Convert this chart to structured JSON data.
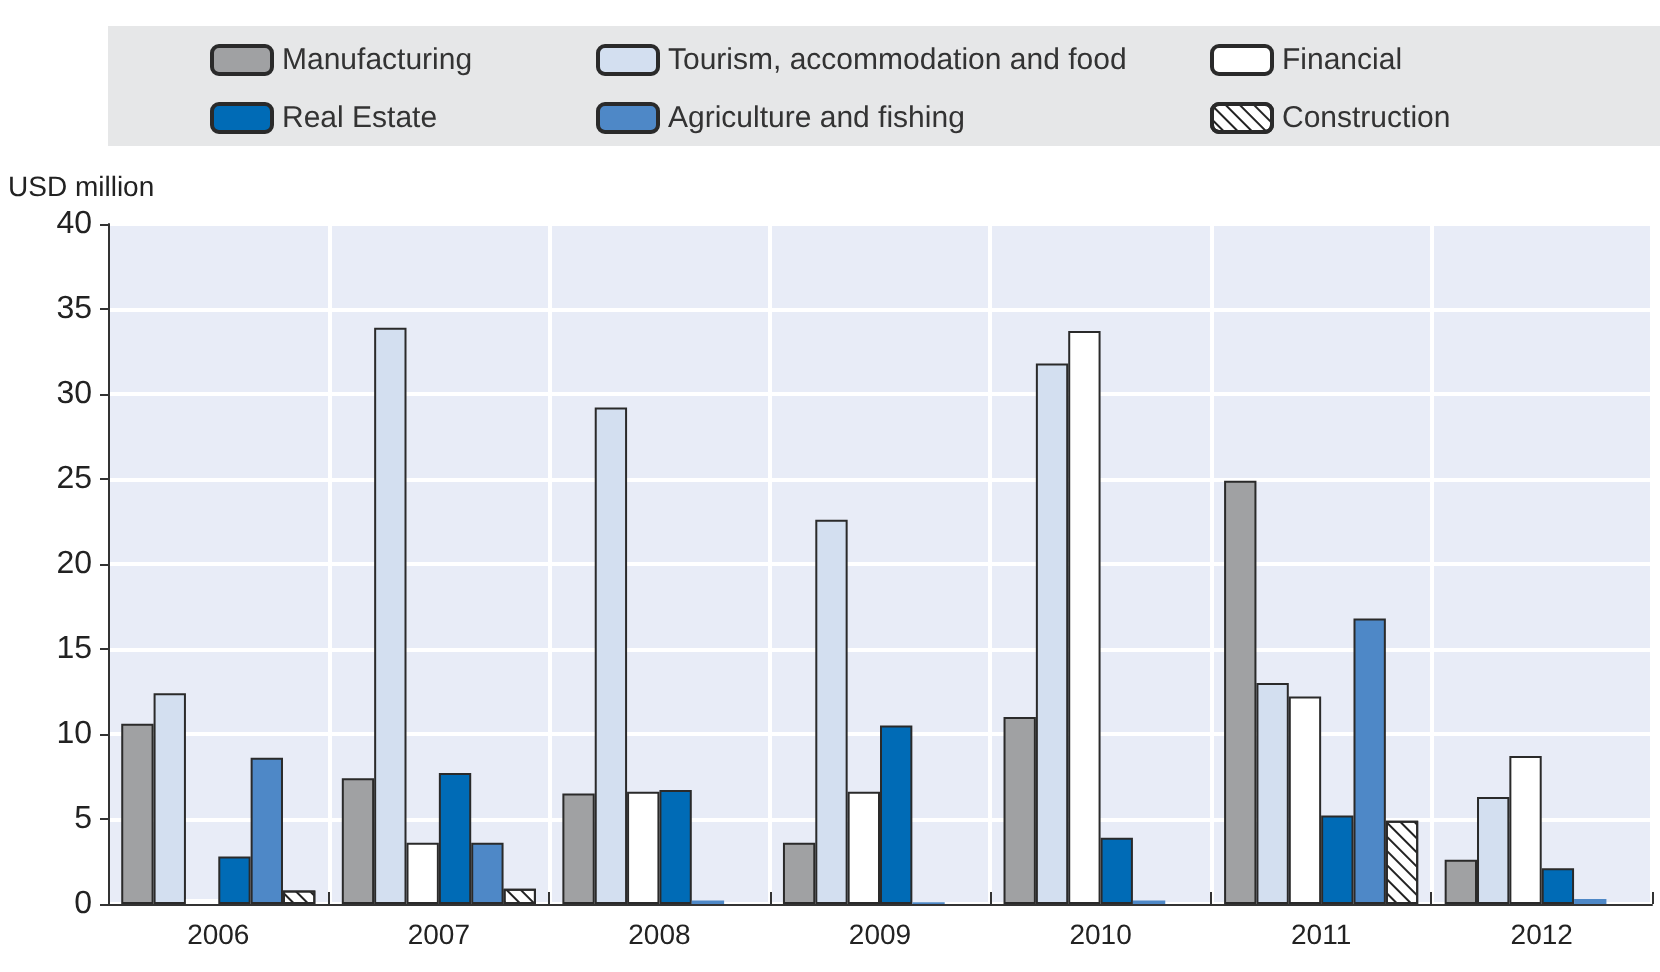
{
  "chart_data": {
    "type": "bar",
    "ylabel": "USD million",
    "categories": [
      "2006",
      "2007",
      "2008",
      "2009",
      "2010",
      "2011",
      "2012"
    ],
    "series": [
      {
        "name": "Manufacturing",
        "color": "#a0a1a3",
        "values": [
          10.6,
          7.4,
          6.5,
          3.6,
          11.0,
          24.9,
          2.6
        ]
      },
      {
        "name": "Tourism, accommodation and food",
        "color": "#d3dff0",
        "values": [
          12.4,
          33.9,
          29.2,
          22.6,
          31.8,
          13.0,
          6.3
        ]
      },
      {
        "name": "Financial",
        "color": "#ffffff",
        "values": [
          0.3,
          3.6,
          6.6,
          6.6,
          33.7,
          12.2,
          8.7
        ]
      },
      {
        "name": "Real Estate",
        "color": "#006bb6",
        "values": [
          2.8,
          7.7,
          6.7,
          10.5,
          3.9,
          5.2,
          2.1
        ]
      },
      {
        "name": "Agriculture and fishing",
        "color": "#4e88c7",
        "values": [
          8.6,
          3.6,
          0.2,
          0.1,
          0.2,
          16.8,
          0.3
        ]
      },
      {
        "name": "Construction",
        "color": "#ffffff",
        "values": [
          0.8,
          0.9,
          null,
          null,
          0,
          4.9,
          0
        ]
      }
    ],
    "ylim": [
      0,
      40
    ],
    "yticks": [
      0,
      5,
      10,
      15,
      20,
      25,
      30,
      35,
      40
    ],
    "grid": true,
    "legend": "top"
  }
}
